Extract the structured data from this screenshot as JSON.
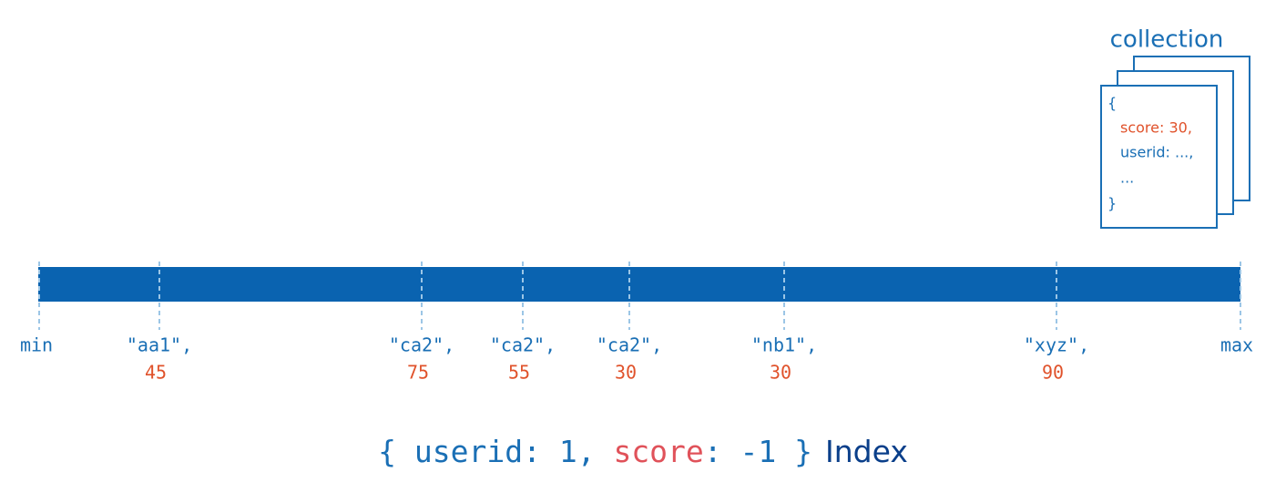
{
  "collection": {
    "title": "collection",
    "document": {
      "open": "{",
      "score_line": "score: 30,",
      "userid_line": "userid: ...,",
      "more": "...",
      "close": "}"
    }
  },
  "index": {
    "entries": [
      {
        "key": "min"
      },
      {
        "key": "\"aa1\",",
        "score": 45
      },
      {
        "key": "\"ca2\",",
        "score": 75
      },
      {
        "key": "\"ca2\",",
        "score": 55
      },
      {
        "key": "\"ca2\",",
        "score": 30
      },
      {
        "key": "\"nb1\",",
        "score": 30
      },
      {
        "key": "\"xyz\",",
        "score": 90
      },
      {
        "key": "max"
      }
    ]
  },
  "caption": {
    "open": "{ ",
    "field1": "userid",
    "sep1": ": 1, ",
    "field2": "score",
    "sep2": ": -1 }",
    "label": "Index"
  }
}
